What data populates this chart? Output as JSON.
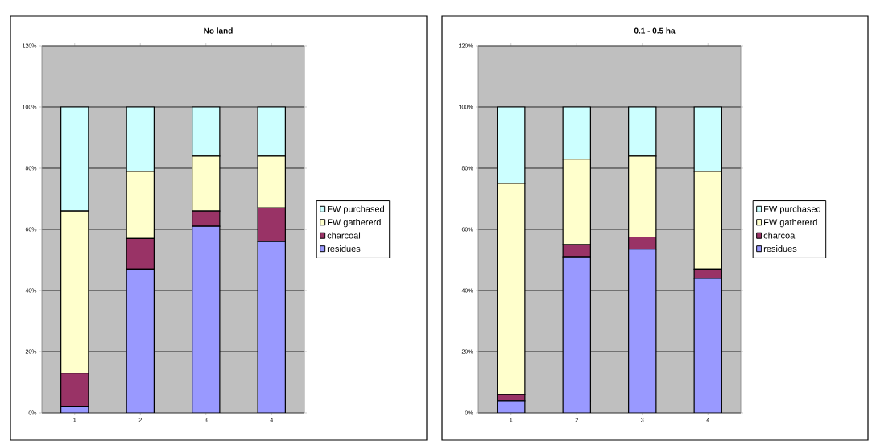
{
  "chart_data": [
    {
      "type": "bar",
      "title": "No land",
      "stacked": true,
      "categories": [
        "1",
        "2",
        "3",
        "4"
      ],
      "series": [
        {
          "name": "residues",
          "color": "#9999ff",
          "values": [
            2,
            47,
            61,
            56
          ]
        },
        {
          "name": "charcoal",
          "color": "#993366",
          "values": [
            11,
            10,
            5,
            11
          ]
        },
        {
          "name": "FW gathererd",
          "color": "#ffffcc",
          "values": [
            53,
            22,
            18,
            17
          ]
        },
        {
          "name": "FW purchased",
          "color": "#ccffff",
          "values": [
            34,
            21,
            16,
            16
          ]
        }
      ],
      "ylim": [
        0,
        120
      ],
      "yticks": [
        {
          "value": 0,
          "label": "0%"
        },
        {
          "value": 20,
          "label": "20%"
        },
        {
          "value": 40,
          "label": "40%"
        },
        {
          "value": 60,
          "label": "60%"
        },
        {
          "value": 80,
          "label": "80%"
        },
        {
          "value": 100,
          "label": "100%"
        },
        {
          "value": 120,
          "label": "120%"
        }
      ],
      "grid": "y",
      "legend": "right"
    },
    {
      "type": "bar",
      "title": "0.1 - 0.5 ha",
      "stacked": true,
      "categories": [
        "1",
        "2",
        "3",
        "4"
      ],
      "series": [
        {
          "name": "residues",
          "color": "#9999ff",
          "values": [
            4,
            51,
            53.5,
            44
          ]
        },
        {
          "name": "charcoal",
          "color": "#993366",
          "values": [
            2,
            4,
            4,
            3
          ]
        },
        {
          "name": "FW gathererd",
          "color": "#ffffcc",
          "values": [
            69,
            28,
            26.5,
            32
          ]
        },
        {
          "name": "FW purchased",
          "color": "#ccffff",
          "values": [
            25,
            17,
            16,
            21
          ]
        }
      ],
      "ylim": [
        0,
        120
      ],
      "yticks": [
        {
          "value": 0,
          "label": "0%"
        },
        {
          "value": 20,
          "label": "20%"
        },
        {
          "value": 40,
          "label": "40%"
        },
        {
          "value": 60,
          "label": "60%"
        },
        {
          "value": 80,
          "label": "80%"
        },
        {
          "value": 100,
          "label": "100%"
        },
        {
          "value": 120,
          "label": "120%"
        }
      ],
      "grid": "y",
      "legend": "right"
    }
  ]
}
